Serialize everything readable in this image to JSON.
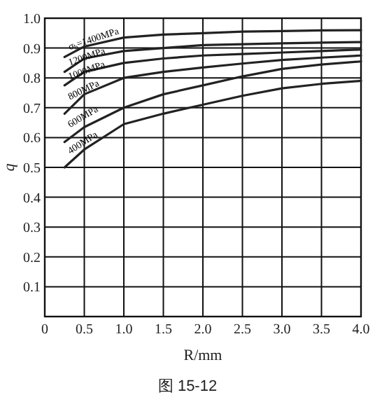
{
  "chart_data": {
    "type": "line",
    "xlabel": "R/mm",
    "ylabel": "q",
    "xlim": [
      0,
      4
    ],
    "ylim": [
      0,
      1
    ],
    "xticks": [
      {
        "value": 0,
        "label": "0"
      },
      {
        "value": 0.5,
        "label": "0.5"
      },
      {
        "value": 1,
        "label": "1.0"
      },
      {
        "value": 1.5,
        "label": "1.5"
      },
      {
        "value": 2,
        "label": "2.0"
      },
      {
        "value": 2.5,
        "label": "2.5"
      },
      {
        "value": 3,
        "label": "3.0"
      },
      {
        "value": 3.5,
        "label": "3.5"
      },
      {
        "value": 4,
        "label": "4.0"
      }
    ],
    "yticks": [
      {
        "value": 0,
        "label": null
      },
      {
        "value": 0.1,
        "label": "0.1"
      },
      {
        "value": 0.2,
        "label": "0.2"
      },
      {
        "value": 0.3,
        "label": "0.3"
      },
      {
        "value": 0.4,
        "label": "0.4"
      },
      {
        "value": 0.5,
        "label": "0.5"
      },
      {
        "value": 0.6,
        "label": "0.6"
      },
      {
        "value": 0.7,
        "label": "0.7"
      },
      {
        "value": 0.8,
        "label": "0.8"
      },
      {
        "value": 0.9,
        "label": "0.9"
      },
      {
        "value": 1,
        "label": "1.0"
      }
    ],
    "grid": true,
    "marker": "none",
    "line_style": "solid",
    "x": [
      0.25,
      0.5,
      1.0,
      1.5,
      2.0,
      2.5,
      3.0,
      3.5,
      4.0
    ],
    "series": [
      {
        "name": "σ$_{b}$=1400MPa",
        "color": "#222222",
        "values": [
          0.87,
          0.905,
          0.935,
          0.945,
          0.95,
          0.955,
          0.957,
          0.959,
          0.96
        ]
      },
      {
        "name": "1200MPa",
        "color": "#222222",
        "values": [
          0.82,
          0.865,
          0.89,
          0.9,
          0.91,
          0.913,
          0.916,
          0.918,
          0.92
        ]
      },
      {
        "name": "1000MPa",
        "color": "#222222",
        "values": [
          0.775,
          0.82,
          0.85,
          0.865,
          0.875,
          0.88,
          0.885,
          0.89,
          0.895
        ]
      },
      {
        "name": "800MPa",
        "color": "#222222",
        "values": [
          0.68,
          0.745,
          0.8,
          0.82,
          0.835,
          0.848,
          0.86,
          0.868,
          0.875
        ]
      },
      {
        "name": "600MPa",
        "color": "#222222",
        "values": [
          0.585,
          0.635,
          0.7,
          0.745,
          0.775,
          0.805,
          0.83,
          0.845,
          0.855
        ]
      },
      {
        "name": "400MPa",
        "color": "#222222",
        "values": [
          0.5,
          0.56,
          0.645,
          0.68,
          0.71,
          0.74,
          0.765,
          0.78,
          0.79
        ]
      }
    ],
    "annotations": [
      "图 15-12"
    ]
  }
}
